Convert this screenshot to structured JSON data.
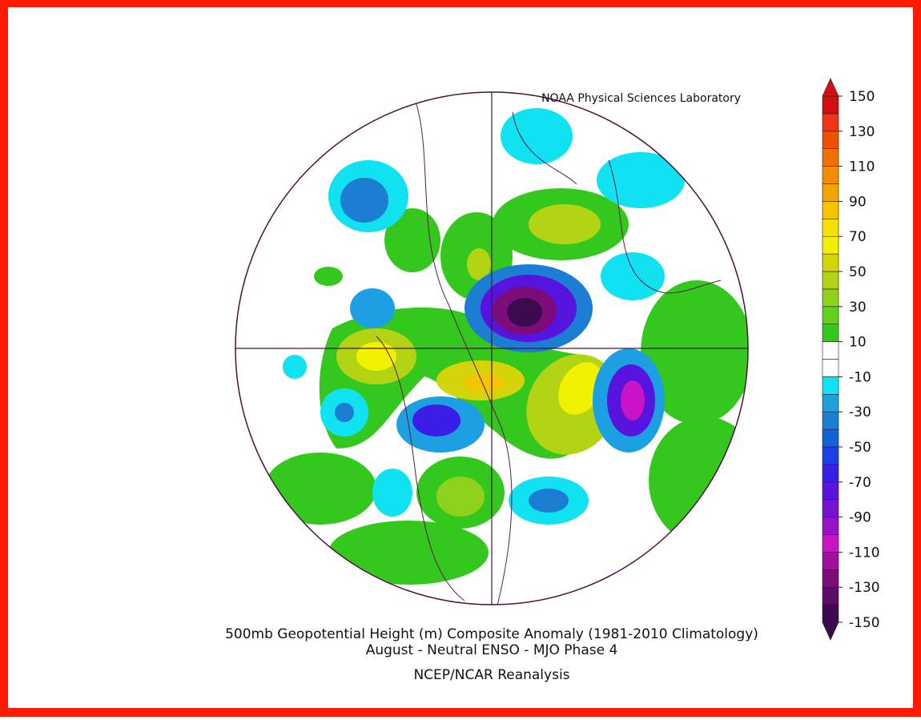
{
  "header": {
    "credit": "NOAA Physical Sciences Laboratory"
  },
  "footer": {
    "title": "500mb Geopotential Height (m) Composite Anomaly (1981-2010 Climatology)",
    "subtitle": "August - Neutral ENSO - MJO Phase 4",
    "source": "NCEP/NCAR Reanalysis"
  },
  "colorbar": {
    "lim": [
      -150,
      150
    ],
    "ticks": [
      150,
      130,
      110,
      90,
      70,
      50,
      30,
      10,
      -10,
      -30,
      -50,
      -70,
      -90,
      -110,
      -130,
      -150
    ],
    "bounds": [
      -150,
      -140,
      -130,
      -120,
      -110,
      -100,
      -90,
      -80,
      -70,
      -60,
      -50,
      -40,
      -30,
      -20,
      -10,
      0,
      10,
      20,
      30,
      40,
      50,
      60,
      70,
      80,
      90,
      100,
      110,
      120,
      130,
      140,
      150
    ],
    "colors": [
      "#3c0a4e",
      "#5c0c66",
      "#7c0c7a",
      "#a0109c",
      "#c814c4",
      "#9614c4",
      "#7414d2",
      "#5614de",
      "#3a1ee6",
      "#1c3ee6",
      "#1460d6",
      "#1c7ed2",
      "#1ca0e2",
      "#10e2f2",
      "#ffffff",
      "#ffffff",
      "#34c81e",
      "#64d01e",
      "#8ed21c",
      "#b2d414",
      "#d4d40a",
      "#f2f200",
      "#f8e000",
      "#f4c400",
      "#f4a400",
      "#f28e00",
      "#f07000",
      "#ee5200",
      "#ee3414",
      "#d01010"
    ],
    "under_color": "#3c0a4e",
    "over_color": "#d01010"
  }
}
